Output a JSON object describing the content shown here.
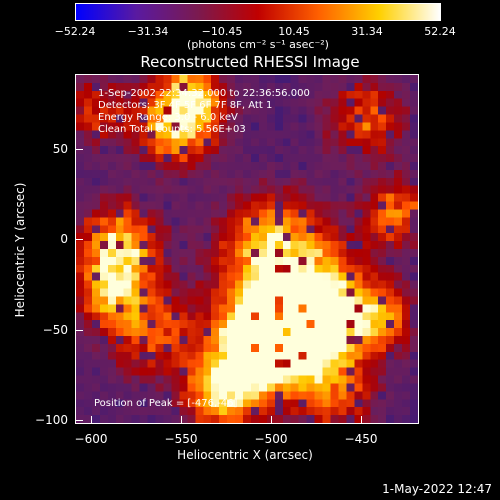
{
  "colorbar": {
    "labels": [
      "−52.24",
      "−31.34",
      "−10.45",
      "10.45",
      "31.34",
      "52.24"
    ],
    "units": "(photons cm⁻² s⁻¹ asec⁻²)",
    "colors": [
      "#0000ff",
      "#5a1aa0",
      "#7a1a50",
      "#c00000",
      "#ff6000",
      "#ffd000",
      "#ffffff"
    ]
  },
  "title": "Reconstructed RHESSI Image",
  "annotations": {
    "time": "1-Sep-2002 22:34:32.000 to 22:36:56.000",
    "detectors": "Detectors: 3F 4F 5F 6F 7F 8F, Att 1",
    "energy": "Energy Range: 3.0 - 6.0 keV",
    "clean": "Clean     Total counts: 5.56E+03",
    "peak": "Position of Peak = [-476,-46]"
  },
  "axes": {
    "xlabel": "Heliocentric X (arcsec)",
    "ylabel": "Heliocentric Y (arcsec)",
    "xticks": [
      "−600",
      "−550",
      "−500",
      "−450"
    ],
    "yticks": [
      "50",
      "0",
      "−50",
      "−100"
    ]
  },
  "timestamp": "1-May-2022 12:47"
}
